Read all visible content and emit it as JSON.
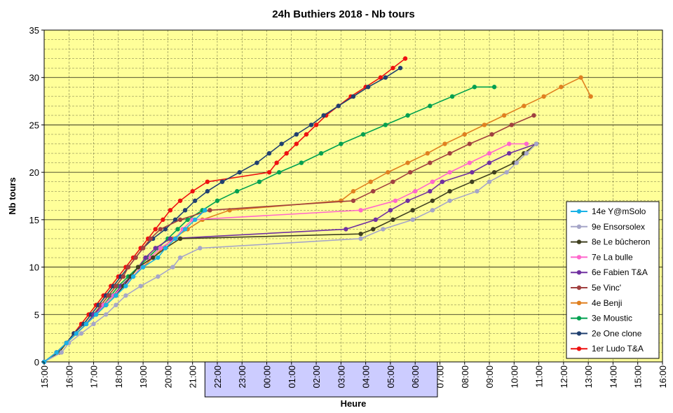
{
  "chart_data": {
    "type": "line",
    "title": "24h Buthiers 2018 - Nb tours",
    "xlabel": "Heure",
    "ylabel": "Nb tours",
    "xlim": [
      15,
      40
    ],
    "ylim": [
      0,
      35
    ],
    "ytick_step": 5,
    "y_minor_step": 1,
    "x_ticks": [
      {
        "v": 15,
        "label": "15:00"
      },
      {
        "v": 16,
        "label": "16:00"
      },
      {
        "v": 17,
        "label": "17:00"
      },
      {
        "v": 18,
        "label": "18:00"
      },
      {
        "v": 19,
        "label": "19:00"
      },
      {
        "v": 20,
        "label": "20:00"
      },
      {
        "v": 21,
        "label": "21:00"
      },
      {
        "v": 22,
        "label": "22:00"
      },
      {
        "v": 23,
        "label": "23:00"
      },
      {
        "v": 24,
        "label": "00:00"
      },
      {
        "v": 25,
        "label": "01:00"
      },
      {
        "v": 26,
        "label": "02:00"
      },
      {
        "v": 27,
        "label": "03:00"
      },
      {
        "v": 28,
        "label": "04:00"
      },
      {
        "v": 29,
        "label": "05:00"
      },
      {
        "v": 30,
        "label": "06:00"
      },
      {
        "v": 31,
        "label": "07:00"
      },
      {
        "v": 32,
        "label": "08:00"
      },
      {
        "v": 33,
        "label": "09:00"
      },
      {
        "v": 34,
        "label": "10:00"
      },
      {
        "v": 35,
        "label": "11:00"
      },
      {
        "v": 36,
        "label": "12:00"
      },
      {
        "v": 37,
        "label": "13:00"
      },
      {
        "v": 38,
        "label": "14:00"
      },
      {
        "v": 39,
        "label": "15:00"
      },
      {
        "v": 40,
        "label": "16:00"
      }
    ],
    "night_band": {
      "from": 21.5,
      "to": 30.9,
      "color": "#ccccff"
    },
    "grid": true,
    "legend_position": "right",
    "colors": {
      "plot_bg": "#ffff99",
      "grid": "#000000"
    },
    "series": [
      {
        "name": "14e Y@mSolo",
        "color": "#1ab2e6",
        "points": [
          [
            15,
            0
          ],
          [
            15.5,
            1
          ],
          [
            15.9,
            2
          ],
          [
            16.3,
            3
          ],
          [
            16.7,
            4
          ],
          [
            17.1,
            5
          ],
          [
            17.5,
            6
          ],
          [
            17.9,
            7
          ],
          [
            18.3,
            8
          ],
          [
            18.6,
            9
          ],
          [
            19.0,
            10
          ],
          [
            19.6,
            11
          ],
          [
            19.9,
            12
          ],
          [
            20.3,
            13
          ],
          [
            20.7,
            14
          ],
          [
            21.1,
            15
          ],
          [
            21.5,
            16
          ]
        ]
      },
      {
        "name": "9e Ensorsolex",
        "color": "#a6a6c8",
        "points": [
          [
            15,
            0
          ],
          [
            15.7,
            1
          ],
          [
            16.0,
            2
          ],
          [
            16.5,
            3
          ],
          [
            17.0,
            4
          ],
          [
            17.5,
            5
          ],
          [
            17.9,
            6
          ],
          [
            18.3,
            7
          ],
          [
            18.9,
            8
          ],
          [
            19.6,
            9
          ],
          [
            20.2,
            10
          ],
          [
            20.5,
            11
          ],
          [
            21.3,
            12
          ],
          [
            27.8,
            13
          ],
          [
            28.7,
            14
          ],
          [
            29.9,
            15
          ],
          [
            30.7,
            16
          ],
          [
            31.4,
            17
          ],
          [
            32.5,
            18
          ],
          [
            33.0,
            19
          ],
          [
            33.7,
            20
          ],
          [
            34.1,
            21
          ],
          [
            34.5,
            22
          ],
          [
            34.9,
            23
          ]
        ]
      },
      {
        "name": "8e Le bûcheron",
        "color": "#404020",
        "points": [
          [
            15,
            0
          ],
          [
            15.6,
            1
          ],
          [
            15.9,
            2
          ],
          [
            16.3,
            3
          ],
          [
            16.7,
            4
          ],
          [
            17.1,
            5
          ],
          [
            17.5,
            6
          ],
          [
            17.9,
            7
          ],
          [
            18.2,
            8
          ],
          [
            18.5,
            9
          ],
          [
            18.8,
            10
          ],
          [
            19.4,
            11
          ],
          [
            19.9,
            12
          ],
          [
            20.5,
            13
          ],
          [
            27.8,
            13.5
          ],
          [
            28.3,
            14
          ],
          [
            29.1,
            15
          ],
          [
            29.9,
            16
          ],
          [
            30.7,
            17
          ],
          [
            31.4,
            18
          ],
          [
            32.3,
            19
          ],
          [
            33.2,
            20
          ],
          [
            34.0,
            21
          ],
          [
            34.4,
            22
          ],
          [
            34.9,
            23
          ]
        ]
      },
      {
        "name": "7e La bulle",
        "color": "#ff66cc",
        "points": [
          [
            15,
            0
          ],
          [
            15.6,
            1
          ],
          [
            15.9,
            2
          ],
          [
            16.3,
            3
          ],
          [
            16.7,
            4
          ],
          [
            17.1,
            5
          ],
          [
            17.4,
            6
          ],
          [
            17.8,
            7
          ],
          [
            18.2,
            8
          ],
          [
            18.6,
            9
          ],
          [
            18.9,
            10
          ],
          [
            19.3,
            11
          ],
          [
            19.7,
            12
          ],
          [
            20.3,
            13
          ],
          [
            20.6,
            14
          ],
          [
            21.0,
            15
          ],
          [
            27.8,
            16
          ],
          [
            29.2,
            17
          ],
          [
            30.0,
            18
          ],
          [
            30.7,
            19
          ],
          [
            31.4,
            20
          ],
          [
            32.2,
            21
          ],
          [
            33.0,
            22
          ],
          [
            33.8,
            23
          ],
          [
            34.5,
            23
          ]
        ]
      },
      {
        "name": "6e Fabien T&A",
        "color": "#7030a0",
        "points": [
          [
            15,
            0
          ],
          [
            15.5,
            1
          ],
          [
            15.9,
            2
          ],
          [
            16.3,
            3
          ],
          [
            16.7,
            4
          ],
          [
            17.0,
            5
          ],
          [
            17.4,
            6
          ],
          [
            17.8,
            7
          ],
          [
            18.1,
            8
          ],
          [
            18.5,
            9
          ],
          [
            18.8,
            10
          ],
          [
            19.1,
            11
          ],
          [
            19.5,
            12
          ],
          [
            20.1,
            13
          ],
          [
            27.2,
            14
          ],
          [
            28.4,
            15
          ],
          [
            29.0,
            16
          ],
          [
            29.7,
            17
          ],
          [
            30.6,
            18
          ],
          [
            31.1,
            19
          ],
          [
            32.3,
            20
          ],
          [
            33.0,
            21
          ],
          [
            33.8,
            22
          ],
          [
            34.9,
            23
          ]
        ]
      },
      {
        "name": "5e Vinc'",
        "color": "#a04040",
        "points": [
          [
            15,
            0
          ],
          [
            15.5,
            1
          ],
          [
            15.9,
            2
          ],
          [
            16.3,
            3
          ],
          [
            16.7,
            4
          ],
          [
            17.0,
            5
          ],
          [
            17.3,
            6
          ],
          [
            17.6,
            7
          ],
          [
            17.9,
            8
          ],
          [
            18.2,
            9
          ],
          [
            18.4,
            10
          ],
          [
            18.7,
            11
          ],
          [
            19.0,
            12
          ],
          [
            19.3,
            13
          ],
          [
            19.7,
            14
          ],
          [
            20.5,
            15
          ],
          [
            21.7,
            16
          ],
          [
            27.5,
            17
          ],
          [
            28.3,
            18
          ],
          [
            29.1,
            19
          ],
          [
            29.8,
            20
          ],
          [
            30.6,
            21
          ],
          [
            31.4,
            22
          ],
          [
            32.2,
            23
          ],
          [
            33.1,
            24
          ],
          [
            33.9,
            25
          ],
          [
            34.8,
            26
          ]
        ]
      },
      {
        "name": "4e Benji",
        "color": "#e08020",
        "points": [
          [
            15,
            0
          ],
          [
            15.6,
            1
          ],
          [
            15.9,
            2
          ],
          [
            16.3,
            3
          ],
          [
            16.7,
            4
          ],
          [
            17.1,
            5
          ],
          [
            17.5,
            6
          ],
          [
            17.9,
            7
          ],
          [
            18.2,
            8
          ],
          [
            18.6,
            9
          ],
          [
            19.0,
            10
          ],
          [
            19.4,
            11
          ],
          [
            19.8,
            12
          ],
          [
            20.2,
            13
          ],
          [
            20.8,
            14
          ],
          [
            21.4,
            15
          ],
          [
            22.5,
            16
          ],
          [
            27.0,
            17
          ],
          [
            27.5,
            18
          ],
          [
            28.2,
            19
          ],
          [
            28.9,
            20
          ],
          [
            29.7,
            21
          ],
          [
            30.5,
            22
          ],
          [
            31.2,
            23
          ],
          [
            32.0,
            24
          ],
          [
            32.8,
            25
          ],
          [
            33.6,
            26
          ],
          [
            34.4,
            27
          ],
          [
            35.2,
            28
          ],
          [
            35.9,
            29
          ],
          [
            36.7,
            30
          ],
          [
            37.1,
            28
          ]
        ]
      },
      {
        "name": "3e Moustic",
        "color": "#00a050",
        "points": [
          [
            15,
            0
          ],
          [
            15.5,
            1
          ],
          [
            15.9,
            2
          ],
          [
            16.3,
            3
          ],
          [
            16.7,
            4
          ],
          [
            17.0,
            5
          ],
          [
            17.4,
            6
          ],
          [
            17.7,
            7
          ],
          [
            18.0,
            8
          ],
          [
            18.4,
            9
          ],
          [
            18.8,
            10
          ],
          [
            19.2,
            11
          ],
          [
            19.6,
            12
          ],
          [
            20.0,
            13
          ],
          [
            20.4,
            14
          ],
          [
            20.8,
            15
          ],
          [
            21.4,
            16
          ],
          [
            22.0,
            17
          ],
          [
            22.8,
            18
          ],
          [
            23.7,
            19
          ],
          [
            24.5,
            20
          ],
          [
            25.4,
            21
          ],
          [
            26.2,
            22
          ],
          [
            27.0,
            23
          ],
          [
            27.9,
            24
          ],
          [
            28.8,
            25
          ],
          [
            29.7,
            26
          ],
          [
            30.6,
            27
          ],
          [
            31.5,
            28
          ],
          [
            32.4,
            29
          ],
          [
            33.2,
            29
          ]
        ]
      },
      {
        "name": "2e One clone",
        "color": "#204070",
        "points": [
          [
            15,
            0
          ],
          [
            15.5,
            1
          ],
          [
            15.9,
            2
          ],
          [
            16.2,
            3
          ],
          [
            16.6,
            4
          ],
          [
            16.9,
            5
          ],
          [
            17.2,
            6
          ],
          [
            17.5,
            7
          ],
          [
            17.8,
            8
          ],
          [
            18.1,
            9
          ],
          [
            18.4,
            10
          ],
          [
            18.7,
            11
          ],
          [
            19.0,
            12
          ],
          [
            19.4,
            13
          ],
          [
            19.9,
            14
          ],
          [
            20.3,
            15
          ],
          [
            20.7,
            16
          ],
          [
            21.1,
            17
          ],
          [
            21.6,
            18
          ],
          [
            22.2,
            19
          ],
          [
            22.9,
            20
          ],
          [
            23.6,
            21
          ],
          [
            24.1,
            22
          ],
          [
            24.6,
            23
          ],
          [
            25.2,
            24
          ],
          [
            25.8,
            25
          ],
          [
            26.3,
            26
          ],
          [
            26.9,
            27
          ],
          [
            27.5,
            28
          ],
          [
            28.1,
            29
          ],
          [
            28.8,
            30
          ],
          [
            29.4,
            31
          ]
        ]
      },
      {
        "name": "1er Ludo T&A",
        "color": "#ee1111",
        "points": [
          [
            15,
            0
          ],
          [
            15.5,
            1
          ],
          [
            15.9,
            2
          ],
          [
            16.2,
            3
          ],
          [
            16.5,
            4
          ],
          [
            16.8,
            5
          ],
          [
            17.1,
            6
          ],
          [
            17.4,
            7
          ],
          [
            17.7,
            8
          ],
          [
            18.0,
            9
          ],
          [
            18.3,
            10
          ],
          [
            18.6,
            11
          ],
          [
            18.9,
            12
          ],
          [
            19.2,
            13
          ],
          [
            19.5,
            14
          ],
          [
            19.8,
            15
          ],
          [
            20.1,
            16
          ],
          [
            20.5,
            17
          ],
          [
            21.0,
            18
          ],
          [
            21.6,
            19
          ],
          [
            24.1,
            20
          ],
          [
            24.4,
            21
          ],
          [
            24.8,
            22
          ],
          [
            25.2,
            23
          ],
          [
            25.6,
            24
          ],
          [
            26.0,
            25
          ],
          [
            26.4,
            26
          ],
          [
            26.9,
            27
          ],
          [
            27.4,
            28
          ],
          [
            28.0,
            29
          ],
          [
            28.6,
            30
          ],
          [
            29.1,
            31
          ],
          [
            29.6,
            32
          ]
        ]
      }
    ]
  }
}
